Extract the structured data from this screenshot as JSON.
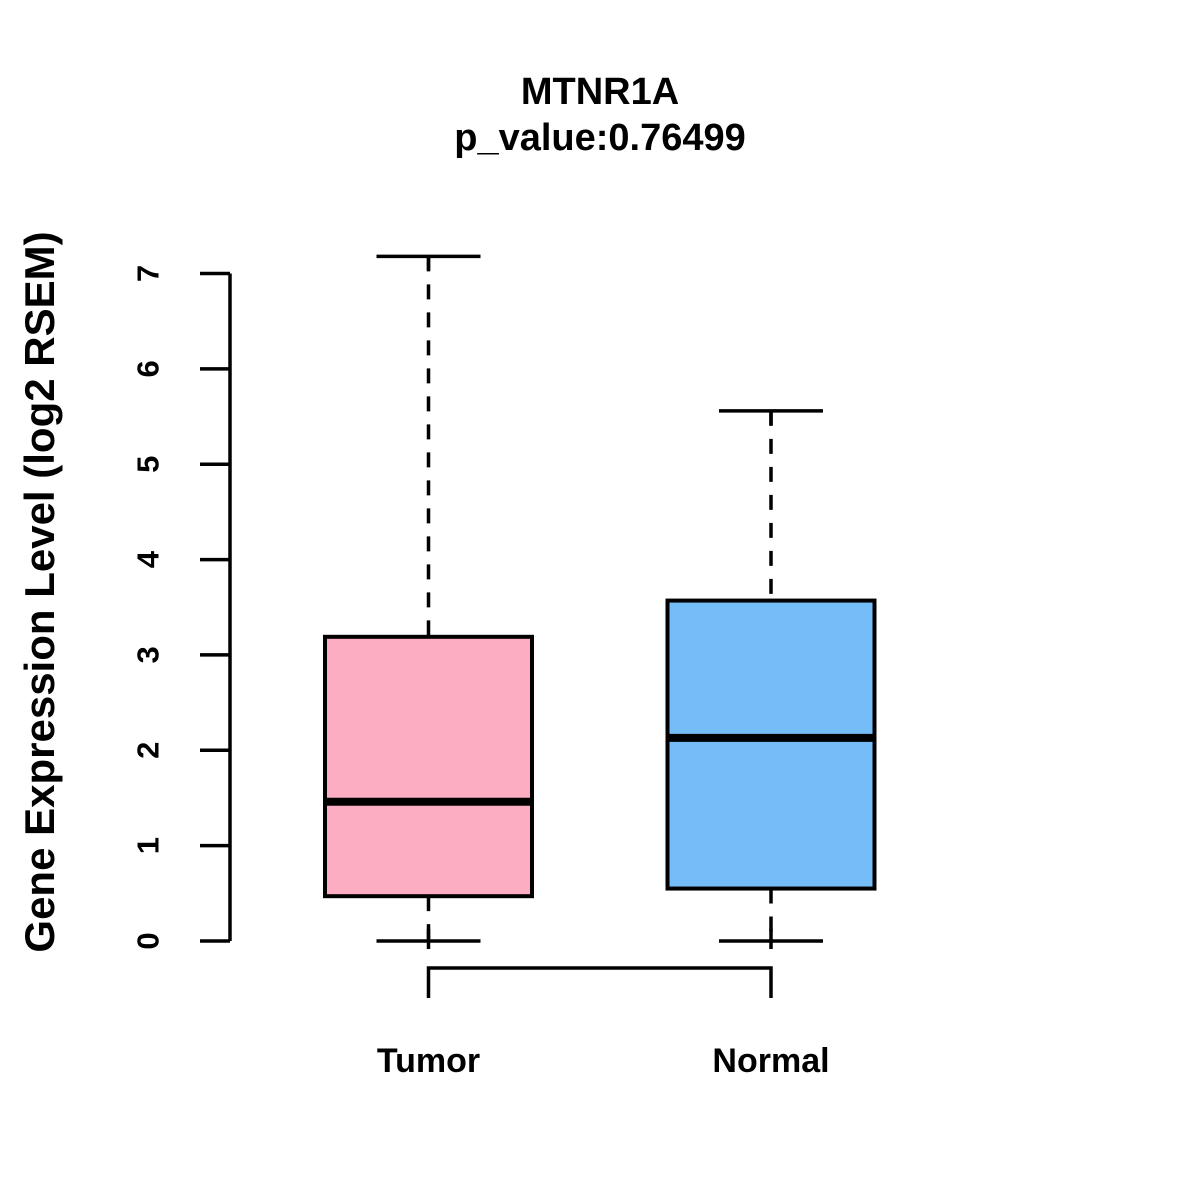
{
  "title": "MTNR1A",
  "subtitle": "p_value:0.76499",
  "chart_data": {
    "type": "boxplot",
    "title": "MTNR1A",
    "subtitle": "p_value:0.76499",
    "ylabel": "Gene Expression Level (log2 RSEM)",
    "xlabel": "",
    "ylim": [
      0,
      7
    ],
    "yticks": [
      0,
      1,
      2,
      3,
      4,
      5,
      6,
      7
    ],
    "grid": false,
    "legend": "none",
    "axis_color": "#000000",
    "whisker_style": "dashed",
    "categories": [
      "Tumor",
      "Normal"
    ],
    "groups": [
      {
        "label": "Tumor",
        "color": "#FCADC1",
        "whisker_low": 0.0,
        "q1": 0.47,
        "median": 1.46,
        "q3": 3.19,
        "whisker_high": 7.18
      },
      {
        "label": "Normal",
        "color": "#74BDF8",
        "whisker_low": 0.0,
        "q1": 0.55,
        "median": 2.13,
        "q3": 3.57,
        "whisker_high": 5.56
      }
    ],
    "comparison_bracket": {
      "from": "Tumor",
      "to": "Normal"
    }
  }
}
